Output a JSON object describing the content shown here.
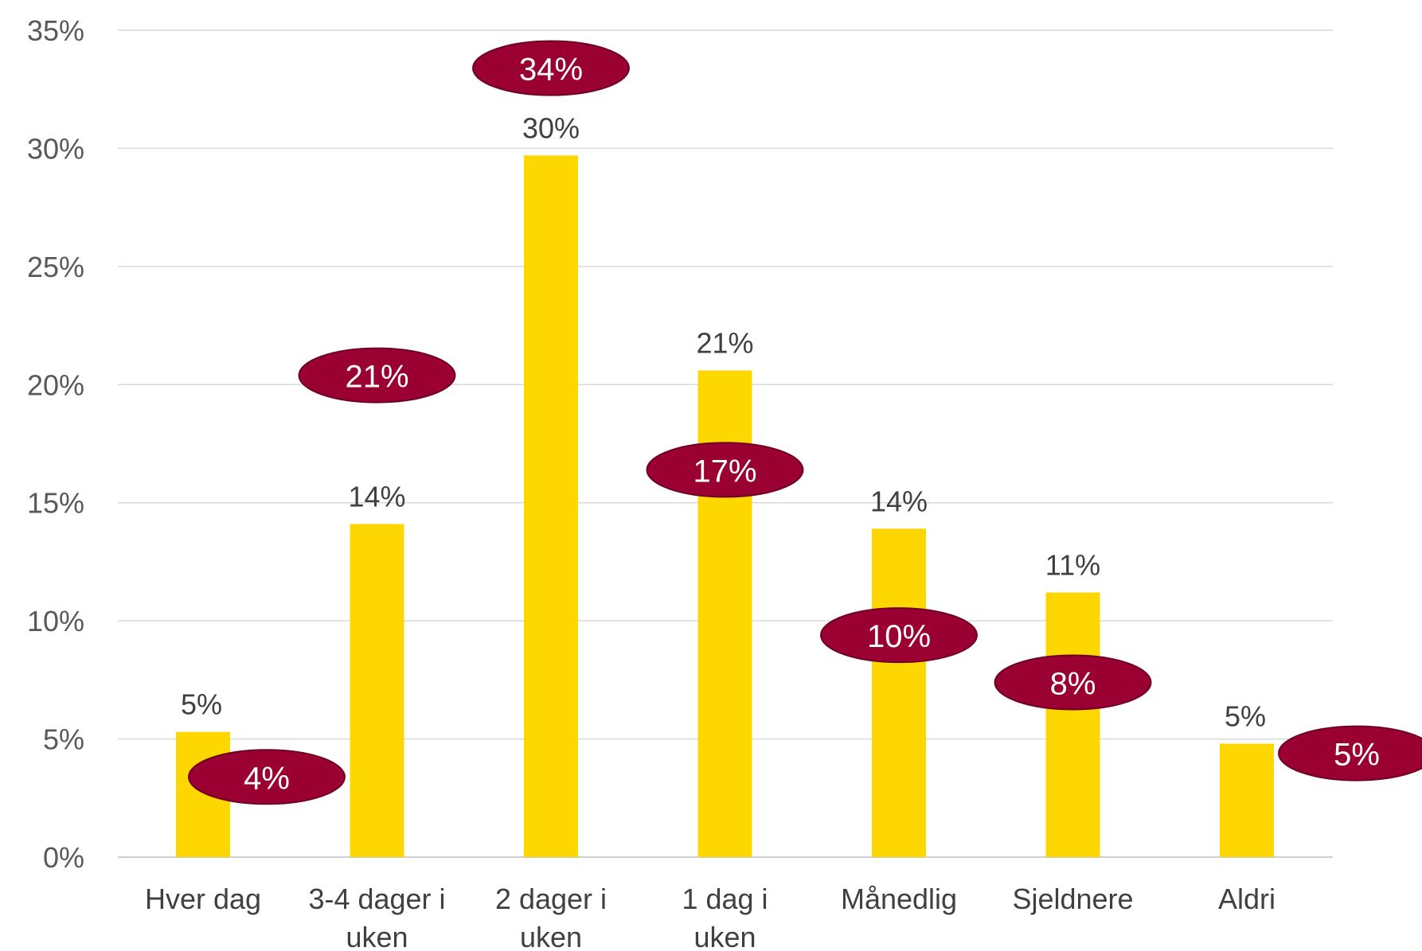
{
  "chart_data": {
    "type": "bar",
    "categories": [
      [
        "Hver dag"
      ],
      [
        "3-4 dager i",
        "uken"
      ],
      [
        "2 dager i",
        "uken"
      ],
      [
        "1 dag i",
        "uken"
      ],
      [
        "Månedlig"
      ],
      [
        "Sjeldnere"
      ],
      [
        "Aldri"
      ]
    ],
    "series": [
      {
        "values": [
          5.3,
          14.1,
          29.7,
          20.6,
          13.9,
          11.2,
          4.8
        ],
        "labels": [
          "5%",
          "14%",
          "30%",
          "21%",
          "14%",
          "11%",
          "5%"
        ],
        "color": "#FFD700"
      },
      {
        "values": [
          4,
          21,
          34,
          17,
          10,
          8,
          5
        ],
        "labels": [
          "4%",
          "21%",
          "34%",
          "17%",
          "10%",
          "8%",
          "5%"
        ],
        "color": "#9B0033"
      }
    ],
    "yticks": [
      "0%",
      "5%",
      "10%",
      "15%",
      "20%",
      "25%",
      "30%",
      "35%"
    ],
    "ylim": [
      0,
      35
    ],
    "grid": true,
    "legend": "none"
  }
}
